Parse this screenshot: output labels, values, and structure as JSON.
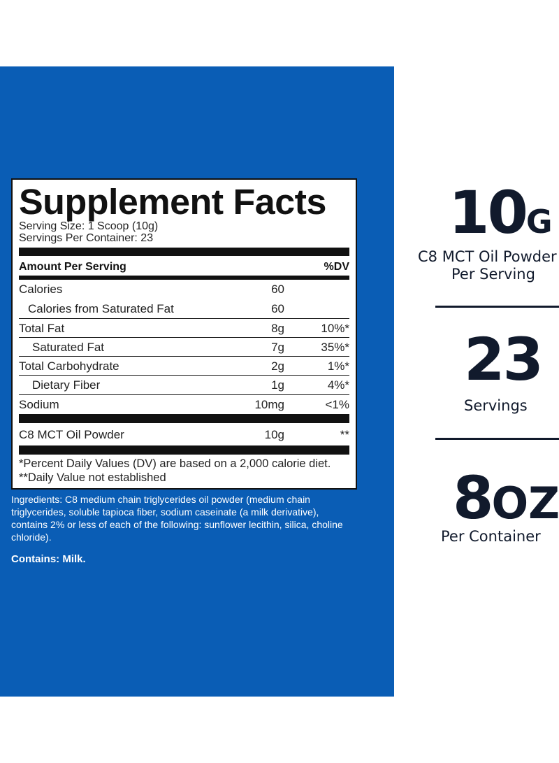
{
  "facts": {
    "title": "Supplement Facts",
    "serving_size": "Serving Size: 1 Scoop (10g)",
    "servings_per_container": "Servings Per Container: 23",
    "amount_header": "Amount Per Serving",
    "dv_header": "%DV",
    "rows": [
      {
        "label": "Calories",
        "amount": "60",
        "dv": ""
      },
      {
        "label": "Calories from Saturated Fat",
        "amount": "60",
        "dv": ""
      },
      {
        "label": "Total Fat",
        "amount": "8g",
        "dv": "10%*"
      },
      {
        "label": "Saturated Fat",
        "amount": "7g",
        "dv": "35%*"
      },
      {
        "label": "Total Carbohydrate",
        "amount": "2g",
        "dv": "1%*"
      },
      {
        "label": "Dietary Fiber",
        "amount": "1g",
        "dv": "4%*"
      },
      {
        "label": "Sodium",
        "amount": "10mg",
        "dv": "<1%"
      },
      {
        "label": "C8 MCT Oil Powder",
        "amount": "10g",
        "dv": "**"
      }
    ],
    "footnote_1": "*Percent Daily Values (DV) are based on a 2,000 calorie diet.",
    "footnote_2": "**Daily Value not established"
  },
  "ingredients": "Ingredients: C8 medium chain triglycerides oil powder (medium chain triglycerides, soluble tapioca fiber, sodium caseinate (a milk derivative), contains 2% or less of each of the following: sunflower lecithin, silica, choline chloride).",
  "contains": "Contains: Milk.",
  "stats": [
    {
      "value": "10",
      "unit": "G",
      "label_line1": "C8 MCT Oil Powder",
      "label_line2": "Per Serving"
    },
    {
      "value": "23",
      "unit": "",
      "label_line1": "Servings",
      "label_line2": ""
    },
    {
      "value": "8",
      "unit": "OZ",
      "label_line1": "Per Container",
      "label_line2": ""
    }
  ],
  "colors": {
    "panel_blue": "#0a5db5",
    "stat_text": "#111a2c"
  }
}
